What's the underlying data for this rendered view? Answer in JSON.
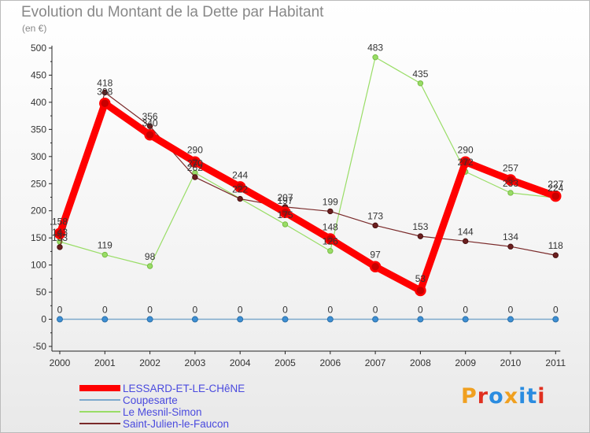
{
  "header": {
    "title": "Evolution du Montant de la Dette par Habitant",
    "unit": "(en €)"
  },
  "brand": {
    "text": "Proxiti",
    "colors": [
      "#f0a020",
      "#e03020",
      "#2a8ce0",
      "#f0a020",
      "#2a8ce0",
      "#2a8ce0",
      "#e03020"
    ]
  },
  "chart_data": {
    "type": "line",
    "title": "Evolution du Montant de la Dette par Habitant",
    "ylabel": "(en €)",
    "xlabel": "",
    "ylim": [
      -50,
      500
    ],
    "yticks": [
      -50,
      0,
      50,
      100,
      150,
      200,
      250,
      300,
      350,
      400,
      450,
      500
    ],
    "grid": false,
    "legend_position": "bottom-left",
    "categories": [
      "2000",
      "2001",
      "2002",
      "2003",
      "2004",
      "2005",
      "2006",
      "2007",
      "2008",
      "2009",
      "2010",
      "2011"
    ],
    "series": [
      {
        "name": "LESSARD-ET-LE-CHêNE",
        "color": "#ff0000",
        "values": [
          158,
          398,
          340,
          290,
          244,
          197,
          148,
          97,
          53,
          290,
          257,
          227
        ]
      },
      {
        "name": "Coupesarte",
        "color": "#7da9cc",
        "values": [
          0,
          0,
          0,
          0,
          0,
          0,
          0,
          0,
          0,
          0,
          0,
          0
        ]
      },
      {
        "name": "Le Mesnil-Simon",
        "color": "#99dd66",
        "values": [
          143,
          119,
          98,
          270,
          null,
          175,
          126,
          483,
          435,
          272,
          233,
          224
        ]
      },
      {
        "name": "Saint-Julien-le-Faucon",
        "color": "#7a2a2a",
        "values": [
          133,
          418,
          356,
          262,
          222,
          207,
          199,
          173,
          153,
          144,
          134,
          118
        ]
      }
    ],
    "data_labels": [
      {
        "series": 0,
        "labels": [
          "158",
          "398",
          "340",
          "290",
          "244",
          "197",
          "148",
          "97",
          "53",
          "290",
          "257",
          "227"
        ]
      },
      {
        "series": 1,
        "labels": [
          "0",
          "0",
          "0",
          "0",
          "0",
          "0",
          "0",
          "0",
          "0",
          "0",
          "0",
          "0"
        ]
      },
      {
        "series": 2,
        "labels": [
          "143",
          "119",
          "98",
          "270",
          "",
          "175",
          "126",
          "483",
          "435",
          "272",
          "233",
          "224"
        ]
      },
      {
        "series": 3,
        "labels": [
          "133",
          "418",
          "356",
          "262",
          "222",
          "207",
          "199",
          "173",
          "153",
          "144",
          "134",
          "118"
        ]
      }
    ]
  }
}
